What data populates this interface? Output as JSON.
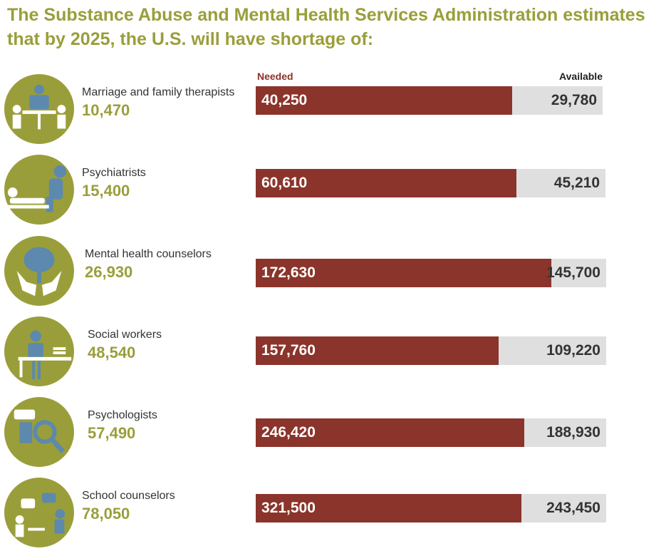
{
  "title": "The Substance Abuse and Mental Health Services Administration estimates that by 2025, the U.S. will have shortage of:",
  "colors": {
    "olive": "#9a9e3a",
    "needed": "#8b342b",
    "available_bg": "#dfdfdf",
    "icon_blue": "#5c89ad"
  },
  "chart_data": {
    "type": "bar",
    "title": "The Substance Abuse and Mental Health Services Administration estimates that by 2025, the U.S. will have shortage of:",
    "legend": {
      "needed": "Needed",
      "available": "Available"
    },
    "categories": [
      "Marriage and family therapists",
      "Psychiatrists",
      "Mental health counselors",
      "Social workers",
      "Psychologists",
      "School counselors"
    ],
    "series": [
      {
        "name": "Needed",
        "values": [
          40250,
          60610,
          172630,
          157760,
          246420,
          321500
        ]
      },
      {
        "name": "Available",
        "values": [
          29780,
          45210,
          145700,
          109220,
          188930,
          243450
        ]
      },
      {
        "name": "Shortage",
        "values": [
          10470,
          15400,
          26930,
          48540,
          57490,
          78050
        ]
      }
    ],
    "rows": [
      {
        "role": "Marriage and family therapists",
        "shortage": "10,470",
        "needed_label": "40,250",
        "available_label": "29,780",
        "needed": 40250,
        "available": 29780,
        "icon": "therapy-table-icon"
      },
      {
        "role": "Psychiatrists",
        "shortage": "15,400",
        "needed_label": "60,610",
        "available_label": "45,210",
        "needed": 60610,
        "available": 45210,
        "icon": "psychiatry-couch-icon"
      },
      {
        "role": "Mental health counselors",
        "shortage": "26,930",
        "needed_label": "172,630",
        "available_label": "145,700",
        "needed": 172630,
        "available": 145700,
        "icon": "brain-hands-icon"
      },
      {
        "role": "Social workers",
        "shortage": "48,540",
        "needed_label": "157,760",
        "available_label": "109,220",
        "needed": 157760,
        "available": 109220,
        "icon": "desk-worker-icon"
      },
      {
        "role": "Psychologists",
        "shortage": "57,490",
        "needed_label": "246,420",
        "available_label": "188,930",
        "needed": 246420,
        "available": 188930,
        "icon": "puzzle-magnifier-icon"
      },
      {
        "role": "School counselors",
        "shortage": "78,050",
        "needed_label": "321,500",
        "available_label": "243,450",
        "needed": 321500,
        "available": 243450,
        "icon": "conversation-icon"
      }
    ]
  }
}
